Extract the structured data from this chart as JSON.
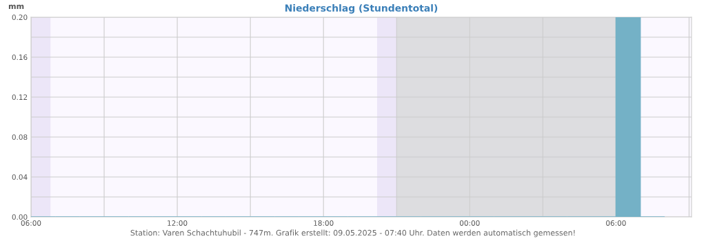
{
  "chart_data": {
    "type": "bar",
    "title": "Niederschlag (Stundentotal)",
    "ylabel": "mm",
    "x": [
      "2025-05-08T06:30",
      "2025-05-08T07:30",
      "2025-05-08T08:30",
      "2025-05-08T09:30",
      "2025-05-08T10:30",
      "2025-05-08T11:30",
      "2025-05-08T12:30",
      "2025-05-08T13:30",
      "2025-05-08T14:30",
      "2025-05-08T15:30",
      "2025-05-08T16:30",
      "2025-05-08T17:30",
      "2025-05-08T18:30",
      "2025-05-08T19:30",
      "2025-05-08T20:30",
      "2025-05-08T21:30",
      "2025-05-08T22:30",
      "2025-05-08T23:30",
      "2025-05-09T00:30",
      "2025-05-09T01:30",
      "2025-05-09T02:30",
      "2025-05-09T03:30",
      "2025-05-09T04:30",
      "2025-05-09T05:30",
      "2025-05-09T06:30",
      "2025-05-09T07:30"
    ],
    "series": [
      {
        "color": "#74b1c6",
        "values": [
          0,
          0,
          0,
          0,
          0,
          0,
          0,
          0,
          0,
          0,
          0,
          0,
          0,
          0,
          0,
          0,
          0,
          0,
          0,
          0,
          0,
          0,
          0,
          0,
          0.2,
          0
        ]
      }
    ],
    "xlim": [
      "2025-05-08T06:00",
      "2025-05-09T09:06"
    ],
    "ylim": [
      0,
      0.2
    ],
    "xticks": [
      {
        "value": "2025-05-08T06:00",
        "label": "06:00"
      },
      {
        "value": "2025-05-08T09:00",
        "label": null
      },
      {
        "value": "2025-05-08T12:00",
        "label": "12:00"
      },
      {
        "value": "2025-05-08T15:00",
        "label": null
      },
      {
        "value": "2025-05-08T18:00",
        "label": "18:00"
      },
      {
        "value": "2025-05-08T21:00",
        "label": null
      },
      {
        "value": "2025-05-09T00:00",
        "label": "00:00"
      },
      {
        "value": "2025-05-09T03:00",
        "label": null
      },
      {
        "value": "2025-05-09T06:00",
        "label": "06:00"
      },
      {
        "value": "2025-05-09T09:00",
        "label": null
      }
    ],
    "yticks": [
      {
        "value": 0,
        "label": "0.00"
      },
      {
        "value": 0.02,
        "label": null
      },
      {
        "value": 0.04,
        "label": "0.04"
      },
      {
        "value": 0.06,
        "label": null
      },
      {
        "value": 0.08,
        "label": "0.08"
      },
      {
        "value": 0.1,
        "label": null
      },
      {
        "value": 0.12,
        "label": "0.12"
      },
      {
        "value": 0.14,
        "label": null
      },
      {
        "value": 0.16,
        "label": "0.16"
      },
      {
        "value": 0.18,
        "label": null
      },
      {
        "value": 0.2,
        "label": "0.20"
      }
    ],
    "bands": [
      {
        "axis": "x",
        "from": "2025-05-08T06:00",
        "to": "2025-05-08T06:48",
        "color": "#ece6f8"
      },
      {
        "axis": "x",
        "from": "2025-05-08T20:12",
        "to": "2025-05-08T21:00",
        "color": "#ece6f8"
      },
      {
        "axis": "x",
        "from": "2025-05-08T21:00",
        "to": "2025-05-09T06:00",
        "color": "#dddde0"
      }
    ],
    "grid": true,
    "legend": false,
    "annotations": [
      "Station: Varen Schachtuhubil - 747m. Grafik erstellt: 09.05.2025 - 07:40 Uhr. Daten werden automatisch gemessen!"
    ]
  }
}
